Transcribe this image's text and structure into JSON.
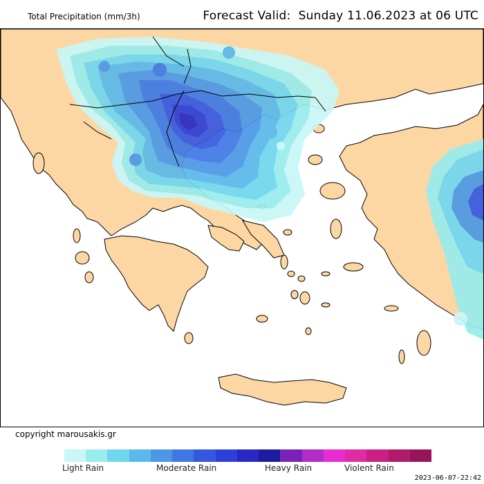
{
  "header": {
    "title": "Total Precipitation (mm/3h)",
    "forecast_label": "Forecast Valid:",
    "forecast_value": "Sunday 11.06.2023 at 06 UTC"
  },
  "footer": {
    "copyright": "copyright marousakis.gr",
    "timestamp": "2023-06-07-22:42"
  },
  "legend": {
    "colors": [
      "#c8f7f7",
      "#98ecec",
      "#6fd6ee",
      "#5ab8ea",
      "#4c97e6",
      "#3f78e4",
      "#3658e0",
      "#2e3ed8",
      "#2828c4",
      "#1c1ca0",
      "#7a22b8",
      "#b22cc8",
      "#e82cd0",
      "#e02aa6",
      "#c82086",
      "#b21a6a",
      "#96145a"
    ],
    "labels": [
      "Light Rain",
      "Moderate Rain",
      "Heavy Rain",
      "Violent Rain"
    ]
  },
  "map": {
    "land_color": "#fcd7a4",
    "sea_color": "#ffffff",
    "border_color": "#000000"
  }
}
